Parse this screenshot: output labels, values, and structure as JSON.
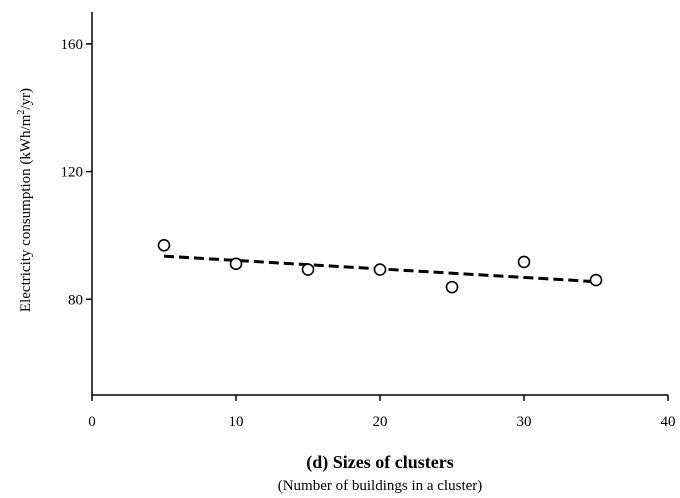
{
  "chart_data": {
    "type": "scatter",
    "xlabel": "(d) Sizes of clusters",
    "xlabel_sub": "(Number of buildings in a cluster)",
    "ylabel_prefix": "Electricity consumption (kWh/m",
    "ylabel_sup": "2",
    "ylabel_suffix": "/yr)",
    "xlim": [
      0,
      40
    ],
    "ylim": [
      50,
      170
    ],
    "xticks": [
      0,
      10,
      20,
      30,
      40
    ],
    "yticks": [
      80,
      120,
      160
    ],
    "xtick_labels": [
      "0",
      "10",
      "20",
      "30",
      "40"
    ],
    "ytick_labels": [
      "80",
      "120",
      "160"
    ],
    "grid": false,
    "series": [
      {
        "x": [
          5,
          10,
          15,
          20,
          25,
          30,
          35
        ],
        "y": [
          96.9,
          91.1,
          89.3,
          89.3,
          83.8,
          91.7,
          86.0
        ]
      }
    ],
    "trendline": {
      "style": "dashed",
      "x": [
        5,
        35
      ],
      "y": [
        93.5,
        85.5
      ]
    }
  }
}
